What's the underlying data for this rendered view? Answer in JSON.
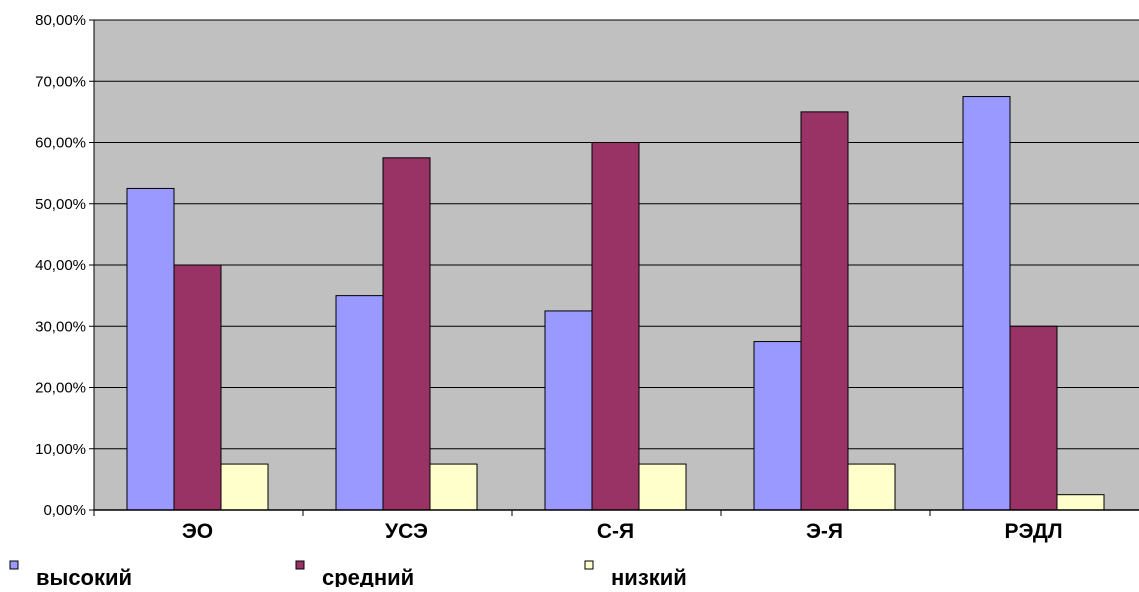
{
  "chart_data": {
    "type": "bar",
    "title": "",
    "xlabel": "",
    "ylabel": "",
    "categories": [
      "ЭО",
      "УСЭ",
      "С-Я",
      "Э-Я",
      "РЭДЛ"
    ],
    "series": [
      {
        "name": "высокий",
        "values": [
          52.5,
          35.0,
          32.5,
          27.5,
          67.5
        ],
        "color": "#9999ff"
      },
      {
        "name": "средний",
        "values": [
          40.0,
          57.5,
          60.0,
          65.0,
          30.0
        ],
        "color": "#993366"
      },
      {
        "name": "низкий",
        "values": [
          7.5,
          7.5,
          7.5,
          7.5,
          2.5
        ],
        "color": "#ffffcc"
      }
    ],
    "ylim": [
      0,
      80
    ],
    "yticks": [
      "0,00%",
      "10,00%",
      "20,00%",
      "30,00%",
      "40,00%",
      "50,00%",
      "60,00%",
      "70,00%",
      "80,00%"
    ],
    "grid": true,
    "plot_background": "#c0c0c0",
    "legend_position": "bottom"
  }
}
